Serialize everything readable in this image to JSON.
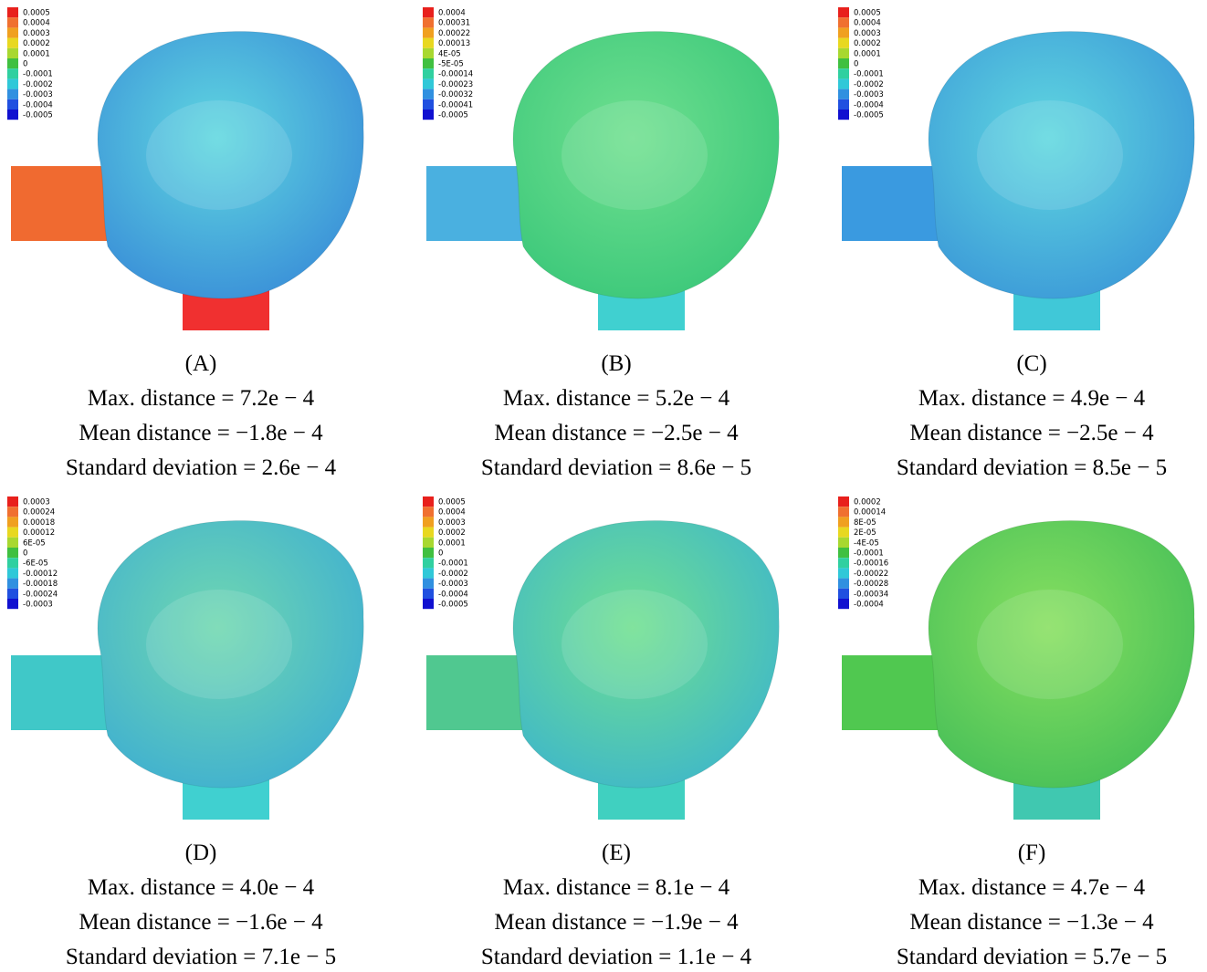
{
  "panels": [
    {
      "label": "(A)",
      "colorbar": [
        "0.0005",
        "0.0004",
        "0.0003",
        "0.0002",
        "0.0001",
        "0",
        "-0.0001",
        "-0.0002",
        "-0.0003",
        "-0.0004",
        "-0.0005"
      ],
      "caption": [
        "Max. distance = 7.2e − 4",
        "Mean distance = −1.8e − 4",
        "Standard deviation = 2.6e − 4"
      ]
    },
    {
      "label": "(B)",
      "colorbar": [
        "0.0004",
        "0.00031",
        "0.00022",
        "0.00013",
        "4E-05",
        "-5E-05",
        "-0.00014",
        "-0.00023",
        "-0.00032",
        "-0.00041",
        "-0.0005"
      ],
      "caption": [
        "Max. distance = 5.2e − 4",
        "Mean distance = −2.5e − 4",
        "Standard deviation = 8.6e − 5"
      ]
    },
    {
      "label": "(C)",
      "colorbar": [
        "0.0005",
        "0.0004",
        "0.0003",
        "0.0002",
        "0.0001",
        "0",
        "-0.0001",
        "-0.0002",
        "-0.0003",
        "-0.0004",
        "-0.0005"
      ],
      "caption": [
        "Max. distance = 4.9e − 4",
        "Mean distance = −2.5e − 4",
        "Standard deviation = 8.5e − 5"
      ]
    },
    {
      "label": "(D)",
      "colorbar": [
        "0.0003",
        "0.00024",
        "0.00018",
        "0.00012",
        "6E-05",
        "0",
        "-6E-05",
        "-0.00012",
        "-0.00018",
        "-0.00024",
        "-0.0003"
      ],
      "caption": [
        "Max. distance = 4.0e − 4",
        "Mean distance = −1.6e − 4",
        "Standard deviation = 7.1e − 5"
      ]
    },
    {
      "label": "(E)",
      "colorbar": [
        "0.0005",
        "0.0004",
        "0.0003",
        "0.0002",
        "0.0001",
        "0",
        "-0.0001",
        "-0.0002",
        "-0.0003",
        "-0.0004",
        "-0.0005"
      ],
      "caption": [
        "Max. distance = 8.1e − 4",
        "Mean distance = −1.9e − 4",
        "Standard deviation = 1.1e − 4"
      ]
    },
    {
      "label": "(F)",
      "colorbar": [
        "0.0002",
        "0.00014",
        "8E-05",
        "2E-05",
        "-4E-05",
        "-0.0001",
        "-0.00016",
        "-0.00022",
        "-0.00028",
        "-0.00034",
        "-0.0004"
      ],
      "caption": [
        "Max. distance = 4.7e − 4",
        "Mean distance = −1.3e − 4",
        "Standard deviation = 5.7e − 5"
      ]
    }
  ]
}
